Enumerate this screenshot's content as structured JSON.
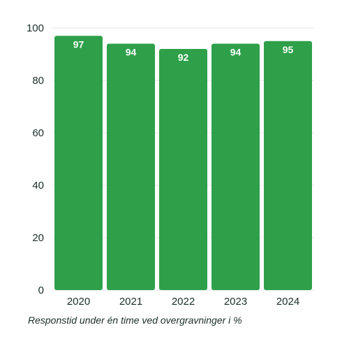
{
  "chart_data": {
    "type": "bar",
    "categories": [
      "2020",
      "2021",
      "2022",
      "2023",
      "2024"
    ],
    "values": [
      97,
      94,
      92,
      94,
      95
    ],
    "data_labels": [
      "97",
      "94",
      "92",
      "94",
      "95"
    ],
    "title": "",
    "xlabel": "",
    "ylabel": "",
    "ylim": [
      0,
      100
    ],
    "yticks": [
      0,
      20,
      40,
      60,
      80,
      100
    ],
    "grid": true,
    "bar_color": "#2ea04a",
    "grid_color": "#e3e6e4",
    "caption": "Responstid under én time ved overgravninger i %"
  }
}
